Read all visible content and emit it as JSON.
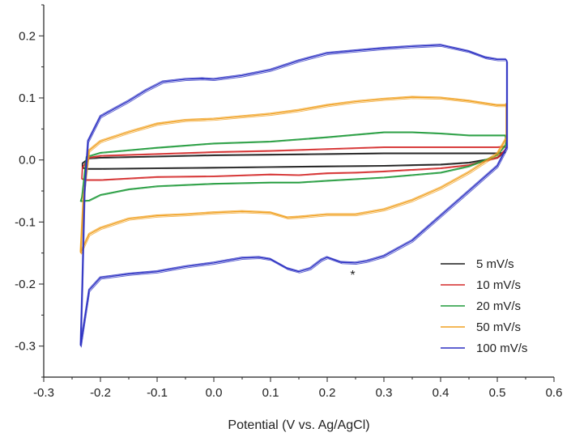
{
  "chart_data": {
    "type": "line",
    "title": "",
    "xlabel": "Potential (V vs. Ag/AgCl)",
    "ylabel": "",
    "xlim": [
      -0.3,
      0.6
    ],
    "ylim": [
      -0.35,
      0.25
    ],
    "xticks": [
      -0.3,
      -0.2,
      -0.1,
      0.0,
      0.1,
      0.2,
      0.3,
      0.4,
      0.5,
      0.6
    ],
    "xtick_labels": [
      "-0.3",
      "-0.2",
      "-0.1",
      "0.0",
      "0.1",
      "0.2",
      "0.3",
      "0.4",
      "0.5",
      "0.6"
    ],
    "yticks": [
      -0.3,
      -0.2,
      -0.1,
      0.0,
      0.1,
      0.2
    ],
    "ytick_labels": [
      "-0.3",
      "-0.2",
      "-0.1",
      "0.0",
      "0.1",
      "0.2"
    ],
    "grid": false,
    "legend_position": "bottom-right",
    "annotations": [
      {
        "text": "*",
        "x": 0.245,
        "y": -0.192
      }
    ],
    "series": [
      {
        "name": "5 mV/s",
        "color": "#1a1a1a",
        "upper": [
          [
            -0.232,
            -0.005
          ],
          [
            -0.22,
            0.003
          ],
          [
            -0.2,
            0.004
          ],
          [
            -0.1,
            0.006
          ],
          [
            0.0,
            0.008
          ],
          [
            0.1,
            0.009
          ],
          [
            0.2,
            0.01
          ],
          [
            0.3,
            0.011
          ],
          [
            0.4,
            0.011
          ],
          [
            0.5,
            0.011
          ],
          [
            0.512,
            0.012
          ]
        ],
        "lower": [
          [
            0.514,
            0.014
          ],
          [
            0.5,
            0.004
          ],
          [
            0.45,
            -0.004
          ],
          [
            0.4,
            -0.007
          ],
          [
            0.3,
            -0.009
          ],
          [
            0.2,
            -0.01
          ],
          [
            0.1,
            -0.011
          ],
          [
            0.0,
            -0.012
          ],
          [
            -0.1,
            -0.013
          ],
          [
            -0.2,
            -0.014
          ],
          [
            -0.225,
            -0.014
          ],
          [
            -0.232,
            -0.012
          ],
          [
            -0.232,
            -0.005
          ]
        ]
      },
      {
        "name": "10 mV/s",
        "color": "#d42a2a",
        "upper": [
          [
            -0.232,
            -0.012
          ],
          [
            -0.22,
            0.004
          ],
          [
            -0.2,
            0.007
          ],
          [
            -0.1,
            0.01
          ],
          [
            0.0,
            0.013
          ],
          [
            0.1,
            0.015
          ],
          [
            0.2,
            0.018
          ],
          [
            0.3,
            0.021
          ],
          [
            0.4,
            0.021
          ],
          [
            0.5,
            0.021
          ],
          [
            0.514,
            0.022
          ]
        ],
        "lower": [
          [
            0.515,
            0.018
          ],
          [
            0.5,
            0.004
          ],
          [
            0.45,
            -0.008
          ],
          [
            0.4,
            -0.013
          ],
          [
            0.3,
            -0.018
          ],
          [
            0.25,
            -0.02
          ],
          [
            0.2,
            -0.021
          ],
          [
            0.15,
            -0.024
          ],
          [
            0.1,
            -0.023
          ],
          [
            0.0,
            -0.026
          ],
          [
            -0.1,
            -0.027
          ],
          [
            -0.2,
            -0.032
          ],
          [
            -0.225,
            -0.032
          ],
          [
            -0.233,
            -0.03
          ],
          [
            -0.232,
            -0.012
          ]
        ]
      },
      {
        "name": "20 mV/s",
        "color": "#1f9a3a",
        "upper": [
          [
            -0.233,
            -0.06
          ],
          [
            -0.225,
            0.005
          ],
          [
            -0.2,
            0.012
          ],
          [
            -0.15,
            0.016
          ],
          [
            -0.1,
            0.02
          ],
          [
            0.0,
            0.027
          ],
          [
            0.1,
            0.03
          ],
          [
            0.2,
            0.037
          ],
          [
            0.3,
            0.045
          ],
          [
            0.35,
            0.045
          ],
          [
            0.4,
            0.043
          ],
          [
            0.45,
            0.04
          ],
          [
            0.5,
            0.04
          ],
          [
            0.514,
            0.04
          ]
        ],
        "lower": [
          [
            0.515,
            0.025
          ],
          [
            0.5,
            0.008
          ],
          [
            0.45,
            -0.01
          ],
          [
            0.4,
            -0.02
          ],
          [
            0.3,
            -0.028
          ],
          [
            0.2,
            -0.033
          ],
          [
            0.15,
            -0.036
          ],
          [
            0.1,
            -0.036
          ],
          [
            0.0,
            -0.038
          ],
          [
            -0.1,
            -0.042
          ],
          [
            -0.15,
            -0.047
          ],
          [
            -0.2,
            -0.056
          ],
          [
            -0.22,
            -0.065
          ],
          [
            -0.235,
            -0.066
          ],
          [
            -0.233,
            -0.06
          ]
        ]
      },
      {
        "name": "50 mV/s",
        "color": "#f0a020",
        "upper": [
          [
            -0.235,
            -0.148
          ],
          [
            -0.23,
            -0.06
          ],
          [
            -0.22,
            0.015
          ],
          [
            -0.2,
            0.03
          ],
          [
            -0.15,
            0.045
          ],
          [
            -0.1,
            0.058
          ],
          [
            -0.05,
            0.064
          ],
          [
            0.0,
            0.066
          ],
          [
            0.05,
            0.07
          ],
          [
            0.1,
            0.074
          ],
          [
            0.15,
            0.08
          ],
          [
            0.2,
            0.088
          ],
          [
            0.25,
            0.094
          ],
          [
            0.3,
            0.098
          ],
          [
            0.35,
            0.101
          ],
          [
            0.4,
            0.1
          ],
          [
            0.45,
            0.095
          ],
          [
            0.5,
            0.088
          ],
          [
            0.515,
            0.088
          ],
          [
            0.516,
            0.09
          ]
        ],
        "lower": [
          [
            0.516,
            0.035
          ],
          [
            0.5,
            0.01
          ],
          [
            0.45,
            -0.02
          ],
          [
            0.4,
            -0.045
          ],
          [
            0.35,
            -0.065
          ],
          [
            0.3,
            -0.08
          ],
          [
            0.25,
            -0.088
          ],
          [
            0.2,
            -0.088
          ],
          [
            0.15,
            -0.092
          ],
          [
            0.13,
            -0.093
          ],
          [
            0.1,
            -0.085
          ],
          [
            0.05,
            -0.083
          ],
          [
            0.0,
            -0.085
          ],
          [
            -0.05,
            -0.088
          ],
          [
            -0.1,
            -0.09
          ],
          [
            -0.15,
            -0.095
          ],
          [
            -0.2,
            -0.11
          ],
          [
            -0.22,
            -0.12
          ],
          [
            -0.235,
            -0.15
          ],
          [
            -0.235,
            -0.148
          ]
        ]
      },
      {
        "name": "100 mV/s",
        "color": "#2b2fc2",
        "upper": [
          [
            -0.235,
            -0.3
          ],
          [
            -0.232,
            -0.2
          ],
          [
            -0.228,
            -0.05
          ],
          [
            -0.222,
            0.03
          ],
          [
            -0.2,
            0.07
          ],
          [
            -0.15,
            0.095
          ],
          [
            -0.12,
            0.112
          ],
          [
            -0.09,
            0.126
          ],
          [
            -0.05,
            0.13
          ],
          [
            -0.02,
            0.131
          ],
          [
            0.0,
            0.13
          ],
          [
            0.05,
            0.136
          ],
          [
            0.1,
            0.145
          ],
          [
            0.15,
            0.16
          ],
          [
            0.2,
            0.172
          ],
          [
            0.25,
            0.176
          ],
          [
            0.3,
            0.18
          ],
          [
            0.35,
            0.183
          ],
          [
            0.4,
            0.185
          ],
          [
            0.45,
            0.175
          ],
          [
            0.48,
            0.165
          ],
          [
            0.5,
            0.162
          ],
          [
            0.515,
            0.162
          ],
          [
            0.517,
            0.16
          ]
        ],
        "lower": [
          [
            0.517,
            0.02
          ],
          [
            0.5,
            -0.01
          ],
          [
            0.45,
            -0.05
          ],
          [
            0.4,
            -0.09
          ],
          [
            0.35,
            -0.13
          ],
          [
            0.3,
            -0.155
          ],
          [
            0.27,
            -0.163
          ],
          [
            0.25,
            -0.166
          ],
          [
            0.225,
            -0.165
          ],
          [
            0.2,
            -0.157
          ],
          [
            0.19,
            -0.161
          ],
          [
            0.17,
            -0.175
          ],
          [
            0.15,
            -0.18
          ],
          [
            0.13,
            -0.175
          ],
          [
            0.1,
            -0.16
          ],
          [
            0.08,
            -0.157
          ],
          [
            0.05,
            -0.158
          ],
          [
            0.0,
            -0.166
          ],
          [
            -0.05,
            -0.172
          ],
          [
            -0.1,
            -0.18
          ],
          [
            -0.15,
            -0.184
          ],
          [
            -0.2,
            -0.19
          ],
          [
            -0.22,
            -0.21
          ],
          [
            -0.235,
            -0.3
          ]
        ]
      }
    ]
  }
}
